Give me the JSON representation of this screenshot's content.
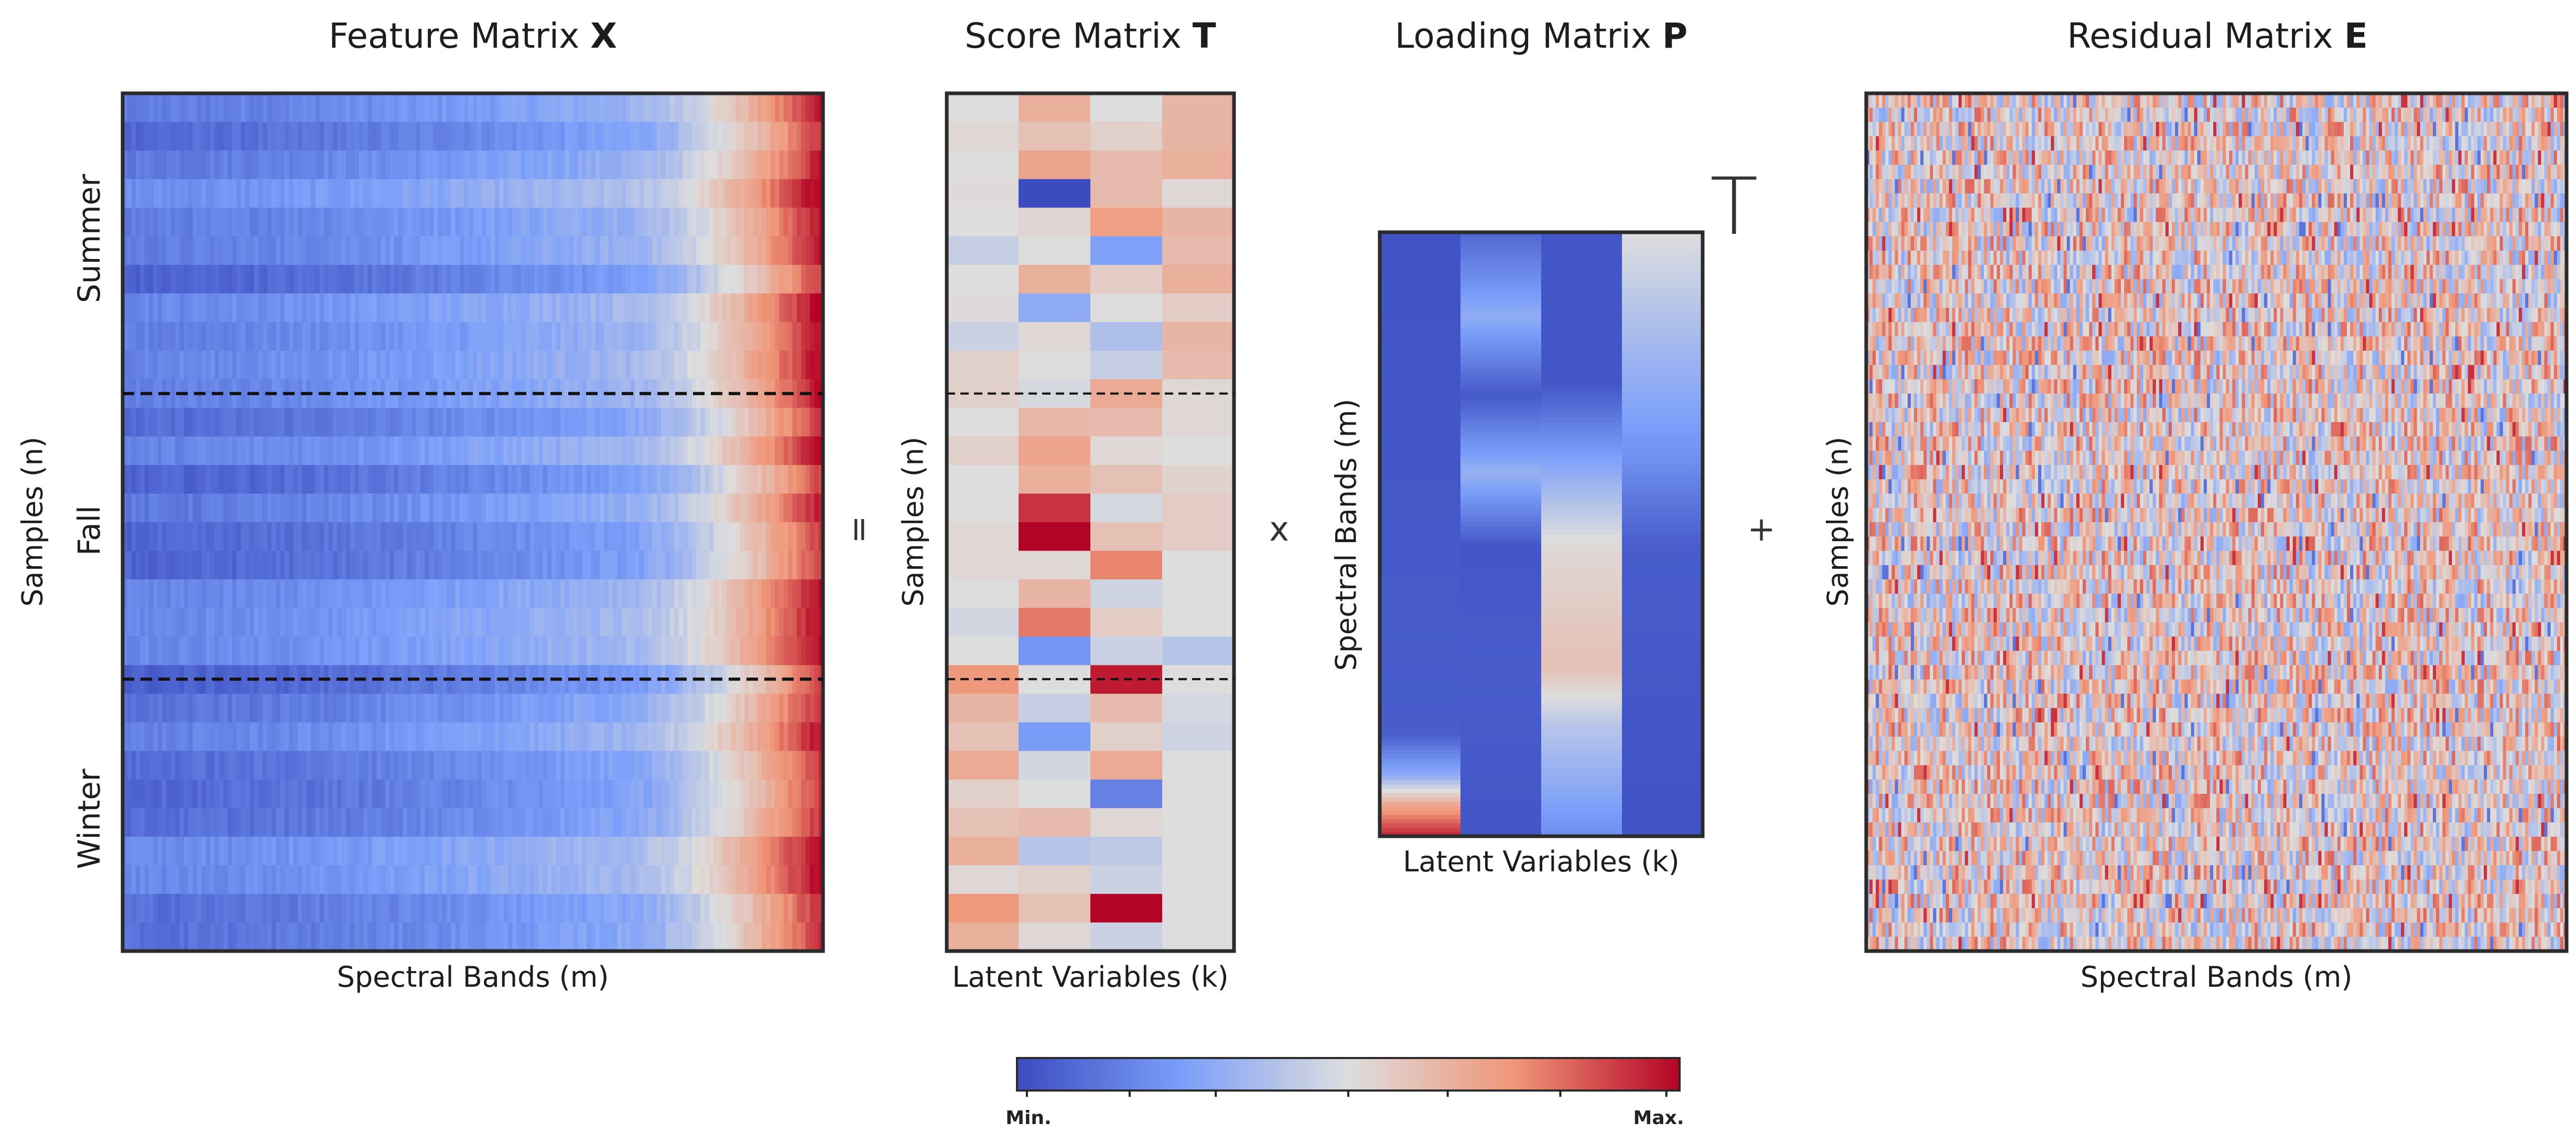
{
  "titles": {
    "feature": {
      "text": "Feature Matrix ",
      "symbol": "X"
    },
    "score": {
      "text": "Score Matrix ",
      "symbol": "T"
    },
    "loading": {
      "text": "Loading Matrix ",
      "symbol": "P"
    },
    "residual": {
      "text": "Residual Matrix ",
      "symbol": "E"
    }
  },
  "axis_labels": {
    "spectral_bands": "Spectral Bands (m)",
    "latent_variables": "Latent Variables (k)",
    "samples": "Samples (n)"
  },
  "season_labels": [
    "Summer",
    "Fall",
    "Winter"
  ],
  "operators": {
    "equals": "=",
    "times": "x",
    "plus": "+"
  },
  "transpose_mark": "T",
  "colorbar": {
    "min_label": "Min.",
    "max_label": "Max.",
    "colormap": "coolwarm"
  },
  "colors": {
    "low": "#3b4cc0",
    "mid": "#dddddd",
    "high": "#b40426",
    "frame": "#2b2b2b"
  },
  "score_matrix": {
    "columns": 4,
    "values": [
      [
        0.5,
        0.66,
        0.5,
        0.64
      ],
      [
        0.52,
        0.6,
        0.55,
        0.64
      ],
      [
        0.5,
        0.7,
        0.62,
        0.66
      ],
      [
        0.51,
        0.0,
        0.62,
        0.52
      ],
      [
        0.5,
        0.53,
        0.72,
        0.64
      ],
      [
        0.44,
        0.5,
        0.26,
        0.62
      ],
      [
        0.5,
        0.66,
        0.56,
        0.66
      ],
      [
        0.51,
        0.3,
        0.5,
        0.56
      ],
      [
        0.45,
        0.52,
        0.38,
        0.64
      ],
      [
        0.55,
        0.5,
        0.44,
        0.62
      ],
      [
        0.55,
        0.48,
        0.68,
        0.52
      ],
      [
        0.5,
        0.63,
        0.62,
        0.52
      ],
      [
        0.55,
        0.7,
        0.52,
        0.5
      ],
      [
        0.5,
        0.66,
        0.6,
        0.54
      ],
      [
        0.5,
        0.92,
        0.48,
        0.56
      ],
      [
        0.52,
        1.0,
        0.6,
        0.56
      ],
      [
        0.52,
        0.52,
        0.78,
        0.5
      ],
      [
        0.5,
        0.64,
        0.46,
        0.5
      ],
      [
        0.47,
        0.8,
        0.56,
        0.5
      ],
      [
        0.5,
        0.22,
        0.45,
        0.4
      ],
      [
        0.74,
        0.5,
        0.96,
        0.5
      ],
      [
        0.64,
        0.44,
        0.62,
        0.48
      ],
      [
        0.6,
        0.24,
        0.55,
        0.46
      ],
      [
        0.68,
        0.47,
        0.68,
        0.5
      ],
      [
        0.55,
        0.5,
        0.16,
        0.5
      ],
      [
        0.6,
        0.62,
        0.52,
        0.5
      ],
      [
        0.66,
        0.4,
        0.42,
        0.5
      ],
      [
        0.52,
        0.55,
        0.45,
        0.5
      ],
      [
        0.74,
        0.6,
        1.0,
        0.5
      ],
      [
        0.66,
        0.52,
        0.45,
        0.5
      ]
    ]
  },
  "loading_matrix": {
    "columns": 4,
    "column_profiles": [
      [
        [
          0.0,
          0.02
        ],
        [
          0.83,
          0.05
        ],
        [
          0.9,
          0.3
        ],
        [
          0.95,
          0.7
        ],
        [
          1.0,
          0.95
        ]
      ],
      [
        [
          0.0,
          0.08
        ],
        [
          0.14,
          0.3
        ],
        [
          0.27,
          0.04
        ],
        [
          0.4,
          0.32
        ],
        [
          0.52,
          0.03
        ],
        [
          0.72,
          0.05
        ],
        [
          1.0,
          0.03
        ]
      ],
      [
        [
          0.0,
          0.03
        ],
        [
          0.25,
          0.03
        ],
        [
          0.52,
          0.52
        ],
        [
          0.72,
          0.6
        ],
        [
          0.82,
          0.4
        ],
        [
          1.0,
          0.2
        ]
      ],
      [
        [
          0.0,
          0.5
        ],
        [
          0.2,
          0.34
        ],
        [
          0.38,
          0.2
        ],
        [
          0.52,
          0.05
        ],
        [
          1.0,
          0.02
        ]
      ]
    ]
  },
  "group_boundaries_fraction": [
    0.35,
    0.683
  ]
}
